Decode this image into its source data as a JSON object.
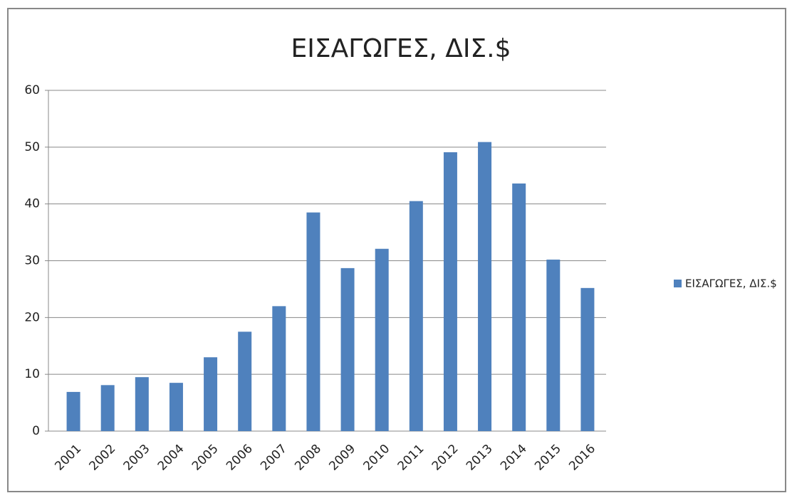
{
  "chart_data": {
    "type": "bar",
    "title": "ΕΙΣΑΓΩΓΕΣ, ΔΙΣ.$",
    "categories": [
      "2001",
      "2002",
      "2003",
      "2004",
      "2005",
      "2006",
      "2007",
      "2008",
      "2009",
      "2010",
      "2011",
      "2012",
      "2013",
      "2014",
      "2015",
      "2016"
    ],
    "series": [
      {
        "name": "ΕΙΣΑΓΩΓΕΣ, ΔΙΣ.$",
        "color": "#4f81bd",
        "values": [
          6.9,
          8.1,
          9.5,
          8.5,
          13.0,
          17.5,
          22.0,
          38.5,
          28.7,
          32.1,
          40.5,
          49.1,
          50.9,
          43.6,
          30.2,
          25.2
        ]
      }
    ],
    "ylim": [
      0,
      60
    ],
    "yticks": [
      0,
      10,
      20,
      30,
      40,
      50,
      60
    ],
    "grid": true,
    "legend": "right"
  }
}
